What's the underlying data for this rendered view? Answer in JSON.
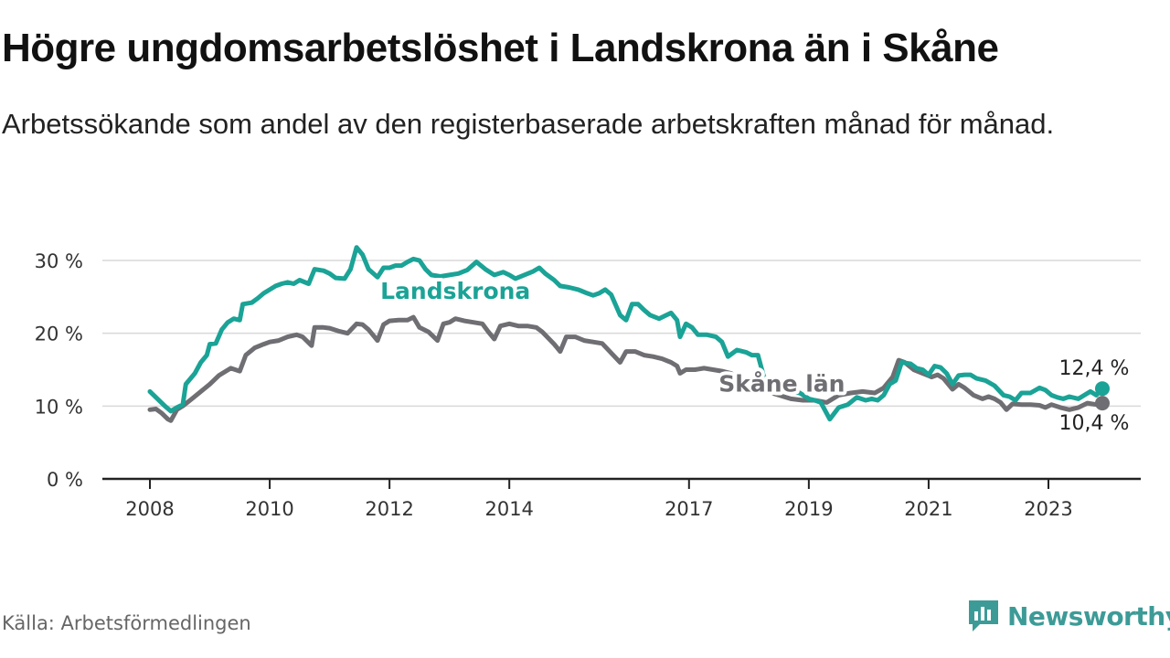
{
  "title": "Högre ungdomsarbetslöshet i Landskrona än i Skåne",
  "subtitle": "Arbetssökande som andel av den registerbaserade arbetskraften månad för månad.",
  "source": "Källa: Arbetsförmedlingen",
  "brand": "Newsworthy",
  "colors": {
    "landskrona": "#1aa396",
    "skane": "#6e6e73",
    "brand": "#3d9b97"
  },
  "chart_data": {
    "type": "line",
    "title": "Högre ungdomsarbetslöshet i Landskrona än i Skåne",
    "xlabel": "",
    "ylabel": "",
    "ylim": [
      0,
      32
    ],
    "xlim": [
      2007.8,
      2024.2
    ],
    "y_ticks": [
      {
        "value": 0,
        "label": "0 %"
      },
      {
        "value": 10,
        "label": "10 %"
      },
      {
        "value": 20,
        "label": "20 %"
      },
      {
        "value": 30,
        "label": "30 %"
      }
    ],
    "x_ticks": [
      {
        "value": 2008,
        "label": "2008"
      },
      {
        "value": 2010,
        "label": "2010"
      },
      {
        "value": 2012,
        "label": "2012"
      },
      {
        "value": 2014,
        "label": "2014"
      },
      {
        "value": 2017,
        "label": "2017"
      },
      {
        "value": 2019,
        "label": "2019"
      },
      {
        "value": 2021,
        "label": "2021"
      },
      {
        "value": 2023,
        "label": "2023"
      }
    ],
    "grid": true,
    "series": [
      {
        "name": "Landskrona",
        "color": "#1aa396",
        "end_label": "12,4 %",
        "points": [
          [
            2008.0,
            12.0
          ],
          [
            2008.1,
            11.2
          ],
          [
            2008.25,
            10.0
          ],
          [
            2008.35,
            9.3
          ],
          [
            2008.45,
            9.8
          ],
          [
            2008.55,
            10.2
          ],
          [
            2008.6,
            13.0
          ],
          [
            2008.75,
            14.5
          ],
          [
            2008.85,
            16.0
          ],
          [
            2008.95,
            17.0
          ],
          [
            2009.0,
            18.5
          ],
          [
            2009.1,
            18.6
          ],
          [
            2009.2,
            20.5
          ],
          [
            2009.3,
            21.5
          ],
          [
            2009.4,
            22.0
          ],
          [
            2009.5,
            21.8
          ],
          [
            2009.55,
            24.0
          ],
          [
            2009.7,
            24.2
          ],
          [
            2009.8,
            24.8
          ],
          [
            2009.9,
            25.5
          ],
          [
            2010.0,
            26.0
          ],
          [
            2010.1,
            26.5
          ],
          [
            2010.2,
            26.8
          ],
          [
            2010.3,
            27.0
          ],
          [
            2010.4,
            26.8
          ],
          [
            2010.5,
            27.3
          ],
          [
            2010.65,
            26.8
          ],
          [
            2010.75,
            28.8
          ],
          [
            2010.9,
            28.6
          ],
          [
            2011.0,
            28.2
          ],
          [
            2011.1,
            27.6
          ],
          [
            2011.25,
            27.5
          ],
          [
            2011.35,
            28.8
          ],
          [
            2011.45,
            31.8
          ],
          [
            2011.55,
            30.8
          ],
          [
            2011.65,
            28.8
          ],
          [
            2011.8,
            27.7
          ],
          [
            2011.9,
            29.0
          ],
          [
            2012.0,
            29.0
          ],
          [
            2012.1,
            29.3
          ],
          [
            2012.2,
            29.3
          ],
          [
            2012.3,
            29.8
          ],
          [
            2012.4,
            30.2
          ],
          [
            2012.5,
            30.0
          ],
          [
            2012.6,
            28.8
          ],
          [
            2012.7,
            28.0
          ],
          [
            2012.85,
            27.8
          ],
          [
            2013.0,
            28.0
          ],
          [
            2013.15,
            28.2
          ],
          [
            2013.3,
            28.7
          ],
          [
            2013.45,
            29.8
          ],
          [
            2013.6,
            28.8
          ],
          [
            2013.75,
            28.0
          ],
          [
            2013.9,
            28.4
          ],
          [
            2014.0,
            28.0
          ],
          [
            2014.1,
            27.5
          ],
          [
            2014.25,
            28.0
          ],
          [
            2014.4,
            28.5
          ],
          [
            2014.5,
            29.0
          ],
          [
            2014.6,
            28.2
          ],
          [
            2014.75,
            27.3
          ],
          [
            2014.85,
            26.5
          ],
          [
            2015.0,
            26.3
          ],
          [
            2015.15,
            26.0
          ],
          [
            2015.3,
            25.5
          ],
          [
            2015.4,
            25.2
          ],
          [
            2015.5,
            25.5
          ],
          [
            2015.6,
            26.0
          ],
          [
            2015.7,
            25.3
          ],
          [
            2015.85,
            22.5
          ],
          [
            2015.95,
            21.8
          ],
          [
            2016.05,
            24.0
          ],
          [
            2016.15,
            24.0
          ],
          [
            2016.25,
            23.2
          ],
          [
            2016.35,
            22.5
          ],
          [
            2016.5,
            22.0
          ],
          [
            2016.6,
            22.4
          ],
          [
            2016.7,
            22.8
          ],
          [
            2016.8,
            21.8
          ],
          [
            2016.85,
            19.5
          ],
          [
            2016.95,
            21.3
          ],
          [
            2017.05,
            20.8
          ],
          [
            2017.15,
            19.8
          ],
          [
            2017.3,
            19.8
          ],
          [
            2017.45,
            19.5
          ],
          [
            2017.55,
            18.8
          ],
          [
            2017.65,
            16.8
          ],
          [
            2017.8,
            17.7
          ],
          [
            2017.95,
            17.4
          ],
          [
            2018.05,
            17.0
          ],
          [
            2018.15,
            17.0
          ],
          [
            2018.25,
            14.0
          ],
          [
            2018.4,
            13.2
          ],
          [
            2018.55,
            12.5
          ],
          [
            2018.7,
            12.0
          ],
          [
            2018.85,
            11.8
          ],
          [
            2019.0,
            11.0
          ],
          [
            2019.1,
            10.8
          ],
          [
            2019.2,
            10.5
          ],
          [
            2019.35,
            8.2
          ],
          [
            2019.5,
            9.8
          ],
          [
            2019.65,
            10.2
          ],
          [
            2019.8,
            11.2
          ],
          [
            2019.95,
            10.8
          ],
          [
            2020.05,
            11.0
          ],
          [
            2020.15,
            10.8
          ],
          [
            2020.25,
            11.5
          ],
          [
            2020.35,
            13.0
          ],
          [
            2020.45,
            13.5
          ],
          [
            2020.55,
            16.0
          ],
          [
            2020.7,
            15.8
          ],
          [
            2020.8,
            15.2
          ],
          [
            2020.9,
            15.0
          ],
          [
            2021.0,
            14.3
          ],
          [
            2021.1,
            15.5
          ],
          [
            2021.2,
            15.3
          ],
          [
            2021.3,
            14.5
          ],
          [
            2021.4,
            13.0
          ],
          [
            2021.5,
            14.2
          ],
          [
            2021.6,
            14.3
          ],
          [
            2021.7,
            14.3
          ],
          [
            2021.8,
            13.8
          ],
          [
            2021.95,
            13.5
          ],
          [
            2022.1,
            12.8
          ],
          [
            2022.25,
            11.5
          ],
          [
            2022.35,
            11.3
          ],
          [
            2022.45,
            10.8
          ],
          [
            2022.55,
            11.8
          ],
          [
            2022.7,
            11.8
          ],
          [
            2022.85,
            12.5
          ],
          [
            2022.95,
            12.2
          ],
          [
            2023.05,
            11.5
          ],
          [
            2023.15,
            11.2
          ],
          [
            2023.25,
            11.0
          ],
          [
            2023.35,
            11.3
          ],
          [
            2023.5,
            11.0
          ],
          [
            2023.6,
            11.5
          ],
          [
            2023.7,
            12.0
          ],
          [
            2023.8,
            11.5
          ],
          [
            2023.9,
            12.4
          ]
        ]
      },
      {
        "name": "Skåne län",
        "color": "#6e6e73",
        "end_label": "10,4 %",
        "points": [
          [
            2008.0,
            9.5
          ],
          [
            2008.1,
            9.6
          ],
          [
            2008.2,
            9.0
          ],
          [
            2008.3,
            8.2
          ],
          [
            2008.35,
            8.0
          ],
          [
            2008.45,
            9.5
          ],
          [
            2008.55,
            10.0
          ],
          [
            2008.7,
            11.0
          ],
          [
            2008.85,
            12.0
          ],
          [
            2009.0,
            13.0
          ],
          [
            2009.15,
            14.2
          ],
          [
            2009.35,
            15.2
          ],
          [
            2009.5,
            14.8
          ],
          [
            2009.6,
            17.0
          ],
          [
            2009.75,
            18.0
          ],
          [
            2009.9,
            18.5
          ],
          [
            2010.0,
            18.8
          ],
          [
            2010.15,
            19.0
          ],
          [
            2010.3,
            19.5
          ],
          [
            2010.45,
            19.8
          ],
          [
            2010.55,
            19.5
          ],
          [
            2010.7,
            18.3
          ],
          [
            2010.75,
            20.8
          ],
          [
            2010.9,
            20.8
          ],
          [
            2011.0,
            20.7
          ],
          [
            2011.15,
            20.3
          ],
          [
            2011.3,
            20.0
          ],
          [
            2011.45,
            21.3
          ],
          [
            2011.55,
            21.2
          ],
          [
            2011.65,
            20.5
          ],
          [
            2011.8,
            19.0
          ],
          [
            2011.9,
            21.2
          ],
          [
            2012.0,
            21.7
          ],
          [
            2012.15,
            21.8
          ],
          [
            2012.3,
            21.8
          ],
          [
            2012.4,
            22.2
          ],
          [
            2012.5,
            20.8
          ],
          [
            2012.65,
            20.2
          ],
          [
            2012.8,
            19.0
          ],
          [
            2012.9,
            21.3
          ],
          [
            2013.0,
            21.5
          ],
          [
            2013.1,
            22.0
          ],
          [
            2013.25,
            21.7
          ],
          [
            2013.4,
            21.5
          ],
          [
            2013.55,
            21.3
          ],
          [
            2013.65,
            20.2
          ],
          [
            2013.75,
            19.2
          ],
          [
            2013.85,
            21.0
          ],
          [
            2014.0,
            21.3
          ],
          [
            2014.15,
            21.0
          ],
          [
            2014.3,
            21.0
          ],
          [
            2014.45,
            20.8
          ],
          [
            2014.55,
            20.2
          ],
          [
            2014.75,
            18.5
          ],
          [
            2014.85,
            17.5
          ],
          [
            2014.95,
            19.5
          ],
          [
            2015.1,
            19.5
          ],
          [
            2015.25,
            19.0
          ],
          [
            2015.4,
            18.8
          ],
          [
            2015.55,
            18.6
          ],
          [
            2015.7,
            17.3
          ],
          [
            2015.85,
            16.0
          ],
          [
            2015.95,
            17.5
          ],
          [
            2016.1,
            17.5
          ],
          [
            2016.25,
            17.0
          ],
          [
            2016.4,
            16.8
          ],
          [
            2016.55,
            16.5
          ],
          [
            2016.7,
            16.0
          ],
          [
            2016.8,
            15.5
          ],
          [
            2016.85,
            14.5
          ],
          [
            2016.95,
            15.0
          ],
          [
            2017.1,
            15.0
          ],
          [
            2017.25,
            15.2
          ],
          [
            2017.4,
            15.0
          ],
          [
            2017.55,
            14.8
          ],
          [
            2017.7,
            14.5
          ],
          [
            2017.9,
            13.5
          ],
          [
            2018.1,
            12.8
          ],
          [
            2018.3,
            12.0
          ],
          [
            2018.5,
            11.5
          ],
          [
            2018.7,
            11.0
          ],
          [
            2018.9,
            10.8
          ],
          [
            2019.1,
            10.8
          ],
          [
            2019.3,
            10.5
          ],
          [
            2019.5,
            11.5
          ],
          [
            2019.7,
            11.8
          ],
          [
            2019.9,
            12.0
          ],
          [
            2020.1,
            11.8
          ],
          [
            2020.25,
            12.5
          ],
          [
            2020.4,
            14.0
          ],
          [
            2020.5,
            16.3
          ],
          [
            2020.6,
            16.0
          ],
          [
            2020.75,
            15.0
          ],
          [
            2020.9,
            14.5
          ],
          [
            2021.05,
            14.0
          ],
          [
            2021.15,
            14.3
          ],
          [
            2021.25,
            13.8
          ],
          [
            2021.4,
            12.3
          ],
          [
            2021.5,
            13.0
          ],
          [
            2021.6,
            12.5
          ],
          [
            2021.75,
            11.5
          ],
          [
            2021.9,
            11.0
          ],
          [
            2022.0,
            11.3
          ],
          [
            2022.1,
            11.0
          ],
          [
            2022.2,
            10.5
          ],
          [
            2022.3,
            9.5
          ],
          [
            2022.4,
            10.3
          ],
          [
            2022.55,
            10.2
          ],
          [
            2022.7,
            10.2
          ],
          [
            2022.85,
            10.1
          ],
          [
            2022.95,
            9.8
          ],
          [
            2023.05,
            10.2
          ],
          [
            2023.2,
            9.8
          ],
          [
            2023.35,
            9.5
          ],
          [
            2023.5,
            9.8
          ],
          [
            2023.65,
            10.4
          ],
          [
            2023.8,
            10.2
          ],
          [
            2023.9,
            10.4
          ]
        ]
      }
    ]
  }
}
